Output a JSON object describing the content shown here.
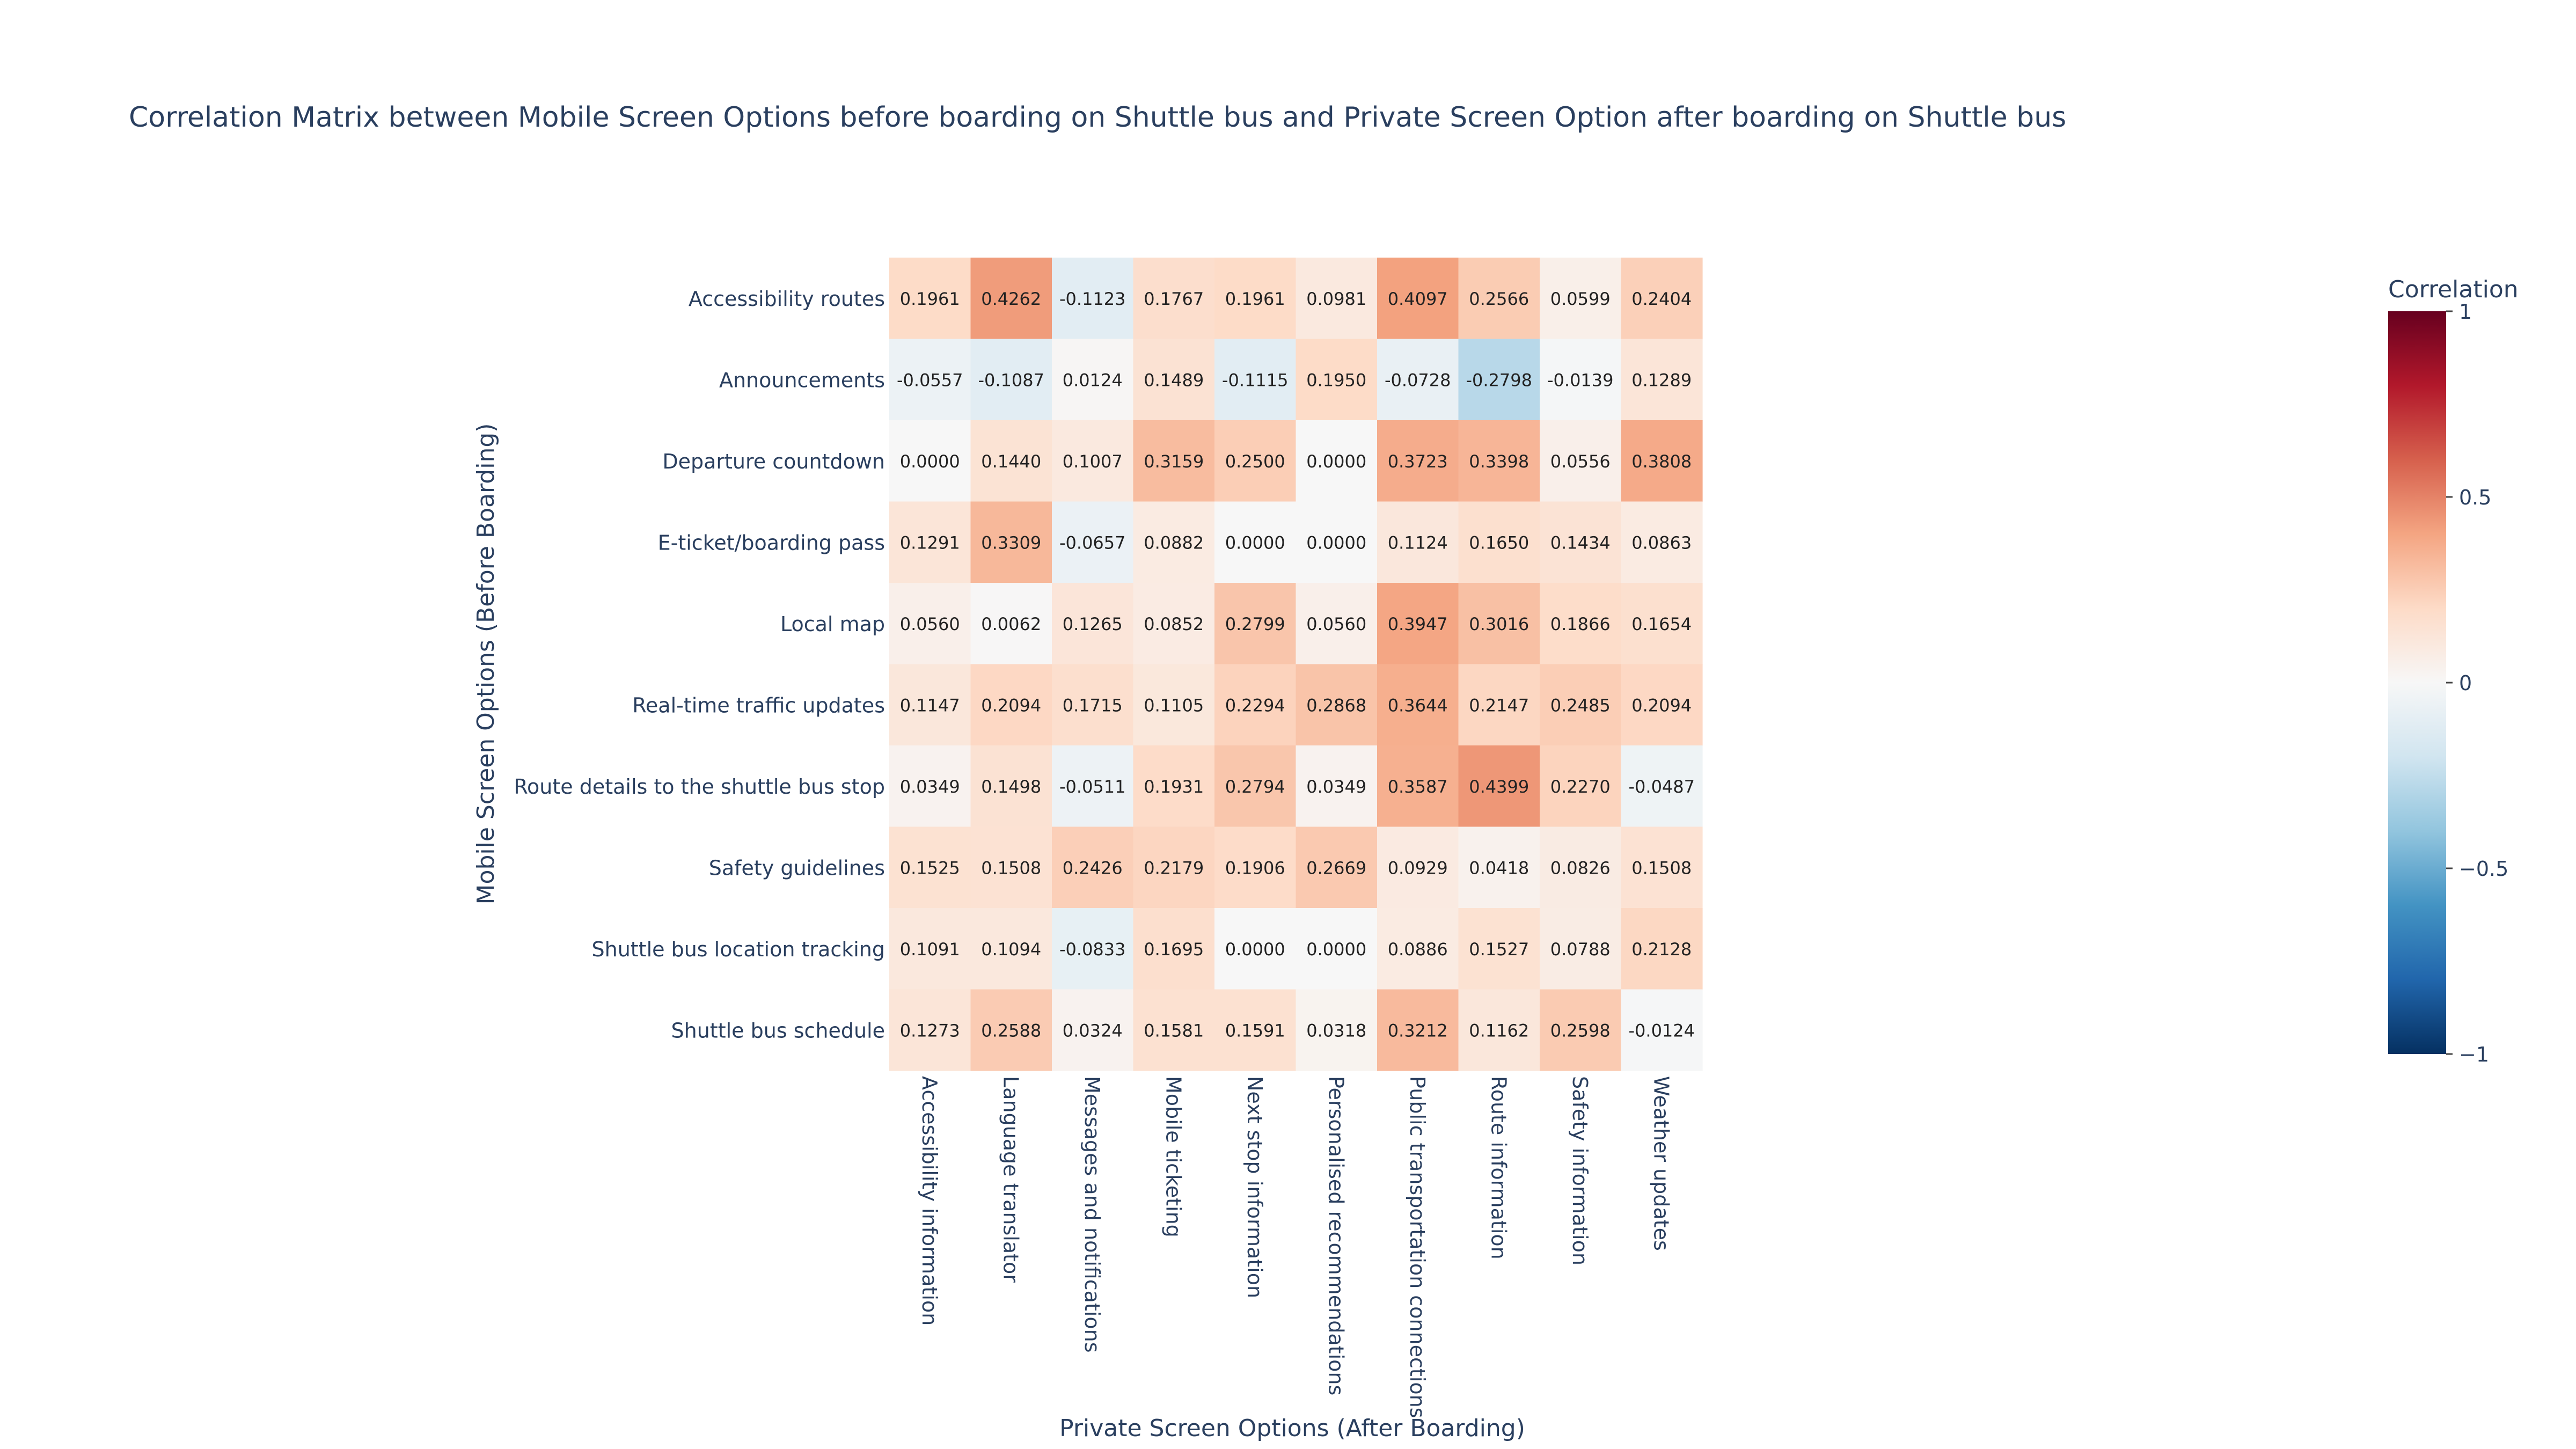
{
  "chart_data": {
    "type": "heatmap",
    "title": "Correlation Matrix between Mobile Screen Options before boarding on Shuttle bus and Private Screen Option after boarding on Shuttle bus",
    "xlabel": "Private Screen Options (After Boarding)",
    "ylabel": "Mobile Screen Options (Before Boarding)",
    "x_categories": [
      "Accessibility information",
      "Language translator",
      "Messages and notifications",
      "Mobile ticketing",
      "Next stop information",
      "Personalised recommendations",
      "Public transportation connections",
      "Route information",
      "Safety information",
      "Weather updates"
    ],
    "y_categories": [
      "Accessibility routes",
      "Announcements",
      "Departure countdown",
      "E-ticket/boarding pass",
      "Local map",
      "Real-time traffic updates",
      "Route details to the shuttle bus stop",
      "Safety guidelines",
      "Shuttle bus location tracking",
      "Shuttle bus schedule"
    ],
    "values": [
      [
        0.1961,
        0.4262,
        -0.1123,
        0.1767,
        0.1961,
        0.0981,
        0.4097,
        0.2566,
        0.0599,
        0.2404
      ],
      [
        -0.0557,
        -0.1087,
        0.0124,
        0.1489,
        -0.1115,
        0.195,
        -0.0728,
        -0.2798,
        -0.0139,
        0.1289
      ],
      [
        0.0,
        0.144,
        0.1007,
        0.3159,
        0.25,
        0.0,
        0.3723,
        0.3398,
        0.0556,
        0.3808
      ],
      [
        0.1291,
        0.3309,
        -0.0657,
        0.0882,
        0.0,
        0.0,
        0.1124,
        0.165,
        0.1434,
        0.0863
      ],
      [
        0.056,
        0.0062,
        0.1265,
        0.0852,
        0.2799,
        0.056,
        0.3947,
        0.3016,
        0.1866,
        0.1654
      ],
      [
        0.1147,
        0.2094,
        0.1715,
        0.1105,
        0.2294,
        0.2868,
        0.3644,
        0.2147,
        0.2485,
        0.2094
      ],
      [
        0.0349,
        0.1498,
        -0.0511,
        0.1931,
        0.2794,
        0.0349,
        0.3587,
        0.4399,
        0.227,
        -0.0487
      ],
      [
        0.1525,
        0.1508,
        0.2426,
        0.2179,
        0.1906,
        0.2669,
        0.0929,
        0.0418,
        0.0826,
        0.1508
      ],
      [
        0.1091,
        0.1094,
        -0.0833,
        0.1695,
        0.0,
        0.0,
        0.0886,
        0.1527,
        0.0788,
        0.2128
      ],
      [
        0.1273,
        0.2588,
        0.0324,
        0.1581,
        0.1591,
        0.0318,
        0.3212,
        0.1162,
        0.2598,
        -0.0124
      ]
    ],
    "zmin": -1,
    "zmax": 1,
    "colorscale": "RdBu",
    "colorbar": {
      "title": "Correlation",
      "ticks": [
        1,
        0.5,
        0,
        -0.5,
        -1
      ],
      "tick_labels": [
        "1",
        "0.5",
        "0",
        "−0.5",
        "−1"
      ]
    },
    "value_format_decimals": 4
  }
}
